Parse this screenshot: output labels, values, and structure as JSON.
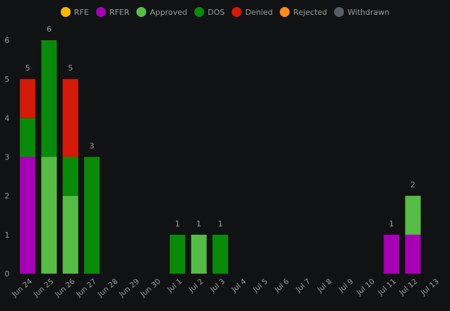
{
  "chart_data": {
    "type": "bar",
    "stacked": true,
    "legend_position": "top-center",
    "grid": false,
    "categories": [
      "Jun 24",
      "Jun 25",
      "Jun 26",
      "Jun 27",
      "Jun 28",
      "Jun 29",
      "Jun 30",
      "Jul 1",
      "Jul 2",
      "Jul 3",
      "Jul 4",
      "Jul 5",
      "Jul 6",
      "Jul 7",
      "Jul 8",
      "Jul 9",
      "Jul 10",
      "Jul 11",
      "Jul 12",
      "Jul 13"
    ],
    "ylim": [
      0,
      6
    ],
    "yticks": [
      "0",
      "1",
      "2",
      "3",
      "4",
      "5",
      "6"
    ],
    "series": [
      {
        "name": "RFE",
        "color": "#f5b800",
        "values": [
          0,
          0,
          0,
          0,
          0,
          0,
          0,
          0,
          0,
          0,
          0,
          0,
          0,
          0,
          0,
          0,
          0,
          0,
          0,
          0
        ]
      },
      {
        "name": "RFER",
        "color": "#a800b7",
        "values": [
          3,
          0,
          0,
          0,
          0,
          0,
          0,
          0,
          0,
          0,
          0,
          0,
          0,
          0,
          0,
          0,
          0,
          1,
          1,
          0
        ]
      },
      {
        "name": "Approved",
        "color": "#57bc45",
        "values": [
          0,
          3,
          2,
          0,
          0,
          0,
          0,
          0,
          1,
          0,
          0,
          0,
          0,
          0,
          0,
          0,
          0,
          0,
          1,
          0
        ]
      },
      {
        "name": "DOS",
        "color": "#0a8a0a",
        "values": [
          1,
          3,
          1,
          3,
          0,
          0,
          0,
          1,
          0,
          1,
          0,
          0,
          0,
          0,
          0,
          0,
          0,
          0,
          0,
          0
        ]
      },
      {
        "name": "Denied",
        "color": "#d41a08",
        "values": [
          1,
          0,
          2,
          0,
          0,
          0,
          0,
          0,
          0,
          0,
          0,
          0,
          0,
          0,
          0,
          0,
          0,
          0,
          0,
          0
        ]
      },
      {
        "name": "Rejected",
        "color": "#ff8c1a",
        "values": [
          0,
          0,
          0,
          0,
          0,
          0,
          0,
          0,
          0,
          0,
          0,
          0,
          0,
          0,
          0,
          0,
          0,
          0,
          0,
          0
        ]
      },
      {
        "name": "Withdrawn",
        "color": "#5a5d66",
        "values": [
          0,
          0,
          0,
          0,
          0,
          0,
          0,
          0,
          0,
          0,
          0,
          0,
          0,
          0,
          0,
          0,
          0,
          0,
          0,
          0
        ]
      }
    ],
    "totals": [
      "5",
      "6",
      "5",
      "3",
      "",
      "",
      "",
      "1",
      "1",
      "1",
      "",
      "",
      "",
      "",
      "",
      "",
      "",
      "1",
      "2",
      ""
    ]
  }
}
